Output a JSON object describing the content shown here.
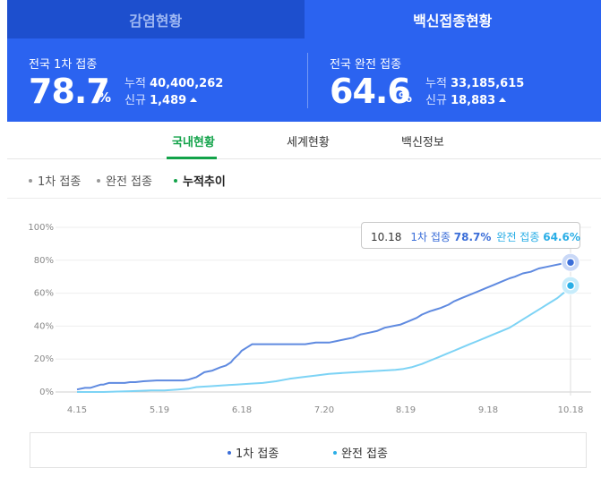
{
  "top_tabs": [
    {
      "label": "감염현황",
      "active": false
    },
    {
      "label": "백신접종현황",
      "active": true
    }
  ],
  "stats": {
    "first": {
      "label": "전국 1차 접종",
      "percent": "78.7",
      "unit": "%",
      "cumulative_label": "누적",
      "cumulative": "40,400,262",
      "new_label": "신규",
      "new": "1,489"
    },
    "full": {
      "label": "전국 완전 접종",
      "percent": "64.6",
      "unit": "%",
      "cumulative_label": "누적",
      "cumulative": "33,185,615",
      "new_label": "신규",
      "new": "18,883"
    }
  },
  "sub_tabs": [
    "국내현황",
    "세계현황",
    "백신정보"
  ],
  "filters": [
    "1차 접종",
    "완전 접종",
    "누적추이"
  ],
  "tooltip": {
    "date": "10.18",
    "s1_label": "1차 접종",
    "s1_value": "78.7%",
    "s2_label": "완전 접종",
    "s2_value": "64.6%"
  },
  "colors": {
    "tab_inactive": "#1d4fce",
    "tab_active": "#2b63f0",
    "series1": "#5f8ae0",
    "series2": "#7dd3f5",
    "accent_green": "#13a34a"
  },
  "chart_data": {
    "type": "line",
    "yticks": [
      "100%",
      "80%",
      "60%",
      "40%",
      "20%",
      "0%"
    ],
    "xticks": [
      "4.15",
      "5.19",
      "6.18",
      "7.20",
      "8.19",
      "9.18",
      "10.18"
    ],
    "ylim": [
      0,
      100
    ],
    "series": [
      {
        "name": "1차 접종",
        "color": "#5f8ae0",
        "x": [
          0,
          3,
          5,
          7,
          9,
          10,
          12,
          15,
          18,
          20,
          22,
          25,
          30,
          35,
          37,
          40,
          42,
          45,
          48,
          51,
          54,
          56,
          58,
          59,
          61,
          62,
          64,
          66,
          68,
          69,
          71,
          74,
          78,
          82,
          86,
          90,
          92,
          95,
          98,
          101,
          104,
          107,
          110,
          113,
          116,
          119,
          122,
          125,
          128,
          130,
          133,
          135,
          137,
          140,
          142,
          145,
          148,
          151,
          154,
          157,
          160,
          163,
          165,
          168,
          171,
          174,
          177,
          180,
          183,
          185,
          186
        ],
        "y": [
          1.5,
          2.5,
          2.5,
          3.5,
          4.5,
          4.5,
          5.5,
          5.5,
          5.5,
          6,
          6,
          6.5,
          7,
          7,
          7,
          7,
          7.5,
          9,
          12,
          13,
          15,
          16,
          18,
          20,
          23,
          25,
          27,
          29,
          29,
          29,
          29,
          29,
          29,
          29,
          29,
          30,
          30,
          30,
          31,
          32,
          33,
          35,
          36,
          37,
          39,
          40,
          41,
          43,
          45,
          47,
          49,
          50,
          51,
          53,
          55,
          57,
          59,
          61,
          63,
          65,
          67,
          69,
          70,
          72,
          73,
          75,
          76,
          77,
          78,
          78.5,
          78.7
        ]
      },
      {
        "name": "완전 접종",
        "color": "#7dd3f5",
        "x": [
          0,
          10,
          20,
          28,
          33,
          38,
          42,
          45,
          50,
          55,
          60,
          65,
          70,
          75,
          80,
          85,
          90,
          95,
          100,
          105,
          110,
          115,
          120,
          123,
          126,
          130,
          133,
          136,
          139,
          142,
          145,
          148,
          151,
          154,
          157,
          160,
          163,
          166,
          169,
          172,
          175,
          178,
          181,
          184,
          186
        ],
        "y": [
          0,
          0,
          0.5,
          1,
          1,
          1.5,
          2,
          3,
          3.5,
          4,
          4.5,
          5,
          5.5,
          6.5,
          8,
          9,
          10,
          11,
          11.5,
          12,
          12.5,
          13,
          13.5,
          14,
          15,
          17,
          19,
          21,
          23,
          25,
          27,
          29,
          31,
          33,
          35,
          37,
          39,
          42,
          45,
          48,
          51,
          54,
          57,
          61,
          64.6
        ]
      }
    ],
    "x_domain": [
      0,
      186
    ]
  },
  "legend": [
    "1차 접종",
    "완전 접종"
  ]
}
